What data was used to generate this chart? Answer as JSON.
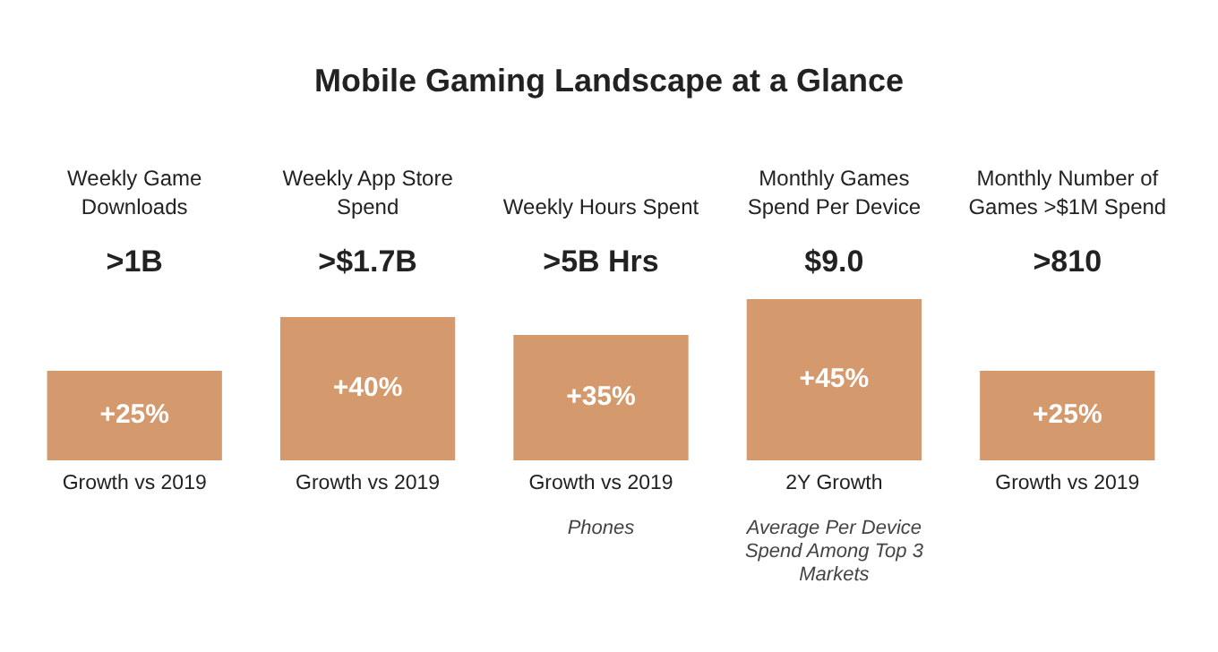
{
  "chart_data": {
    "type": "bar",
    "title": "Mobile Gaming Landscape at a Glance",
    "categories": [
      "Weekly Game Downloads",
      "Weekly App Store Spend",
      "Weekly Hours Spent",
      "Monthly Games Spend Per Device",
      "Monthly Number of Games >$1M Spend"
    ],
    "values": [
      25,
      40,
      35,
      45,
      25
    ],
    "color": "#d49a6d",
    "ylim": [
      0,
      45
    ],
    "data_labels": true,
    "value_labels": [
      "+25%",
      "+40%",
      "+35%",
      "+45%",
      "+25%"
    ],
    "annotations": [
      ">1B",
      ">$1.7B",
      ">5B Hrs",
      "$9.0",
      ">810",
      "Growth vs 2019",
      "Growth vs 2019",
      "Growth vs 2019",
      "2Y Growth",
      "Growth vs 2019",
      {
        "text": "Phones",
        "x": "Weekly Hours Spent",
        "y": 0
      },
      {
        "text": "Average Per Device Spend Among Top 3 Markets",
        "x": "Monthly Games Spend Per Device",
        "y": 0
      }
    ]
  }
}
